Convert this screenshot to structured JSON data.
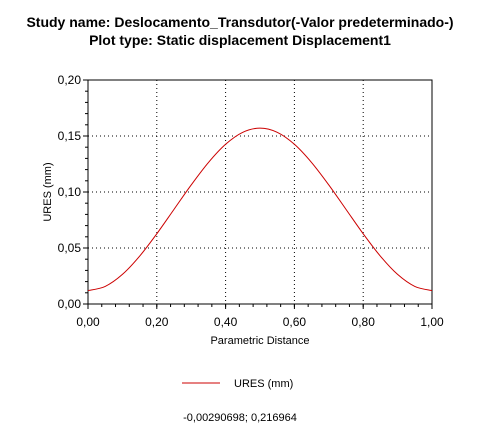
{
  "header": {
    "title": "Study name: Deslocamento_Transdutor(-Valor predeterminado-)",
    "subtitle": "Plot type: Static displacement Displacement1"
  },
  "readout": "-0,00290698; 0,216964",
  "colors": {
    "series": "#cc0000",
    "grid": "#000000",
    "axis": "#000000"
  },
  "chart_data": {
    "type": "line",
    "xlabel": "Parametric Distance",
    "ylabel": "URES (mm)",
    "xlim": [
      0,
      1
    ],
    "ylim": [
      0,
      0.2
    ],
    "x_ticks": [
      0,
      0.2,
      0.4,
      0.6,
      0.8,
      1.0
    ],
    "x_tick_labels": [
      "0,00",
      "0,20",
      "0,40",
      "0,60",
      "0,80",
      "1,00"
    ],
    "y_ticks": [
      0,
      0.05,
      0.1,
      0.15,
      0.2
    ],
    "y_tick_labels": [
      "0,00",
      "0,05",
      "0,10",
      "0,15",
      "0,20"
    ],
    "grid": true,
    "legend_position": "bottom-center",
    "series": [
      {
        "name": "URES (mm)",
        "x": [
          0,
          0.05,
          0.1,
          0.15,
          0.2,
          0.25,
          0.3,
          0.35,
          0.4,
          0.45,
          0.5,
          0.55,
          0.6,
          0.65,
          0.7,
          0.75,
          0.8,
          0.85,
          0.9,
          0.95,
          1.0
        ],
        "y": [
          0.012,
          0.0157,
          0.0264,
          0.0427,
          0.0627,
          0.0845,
          0.1063,
          0.1263,
          0.1426,
          0.1533,
          0.157,
          0.1533,
          0.1426,
          0.1263,
          0.1063,
          0.0845,
          0.0627,
          0.0427,
          0.0264,
          0.0157,
          0.012
        ],
        "values_note_ignored": null
      }
    ]
  }
}
